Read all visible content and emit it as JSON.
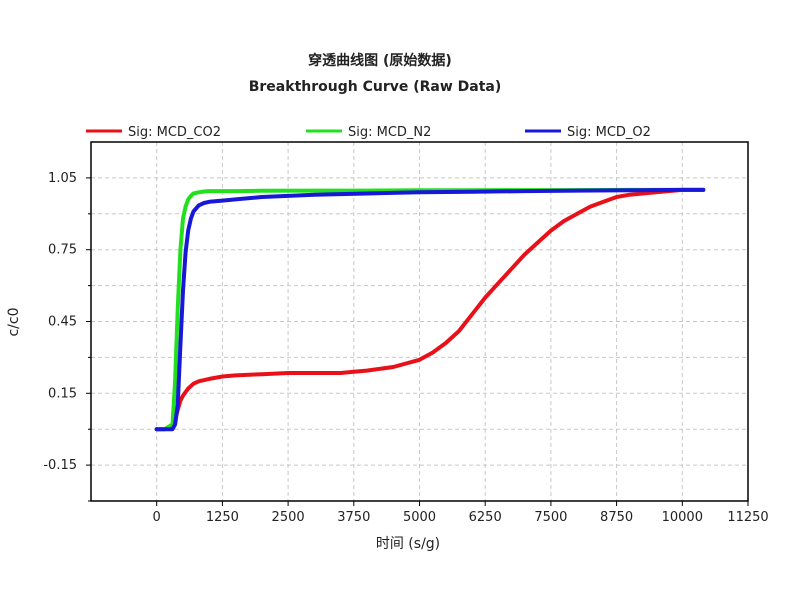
{
  "chart_data": {
    "type": "line",
    "title": "穿透曲线图 (原始数据)",
    "subtitle": "Breakthrough Curve (Raw Data)",
    "xlabel": "时间 (s/g)",
    "ylabel": "c/c0",
    "xlim": [
      -1250,
      11250
    ],
    "ylim": [
      -0.3,
      1.2
    ],
    "xticks": [
      0,
      1250,
      2500,
      3750,
      5000,
      6250,
      7500,
      8750,
      10000,
      11250
    ],
    "yticks": [
      -0.15,
      0.15,
      0.45,
      0.75,
      1.05
    ],
    "yticks_minor": [
      -0.3,
      0,
      0.3,
      0.6,
      0.9
    ],
    "ytick_labels": [
      "-0.15",
      "0.15",
      "0.45",
      "0.75",
      "1.05"
    ],
    "grid": true,
    "legend_position": "top",
    "series": [
      {
        "name": "Sig: MCD_CO2",
        "color": "#e8111a",
        "x": [
          0,
          150,
          300,
          350,
          400,
          450,
          500,
          600,
          700,
          800,
          1000,
          1250,
          1500,
          2000,
          2500,
          3000,
          3500,
          3750,
          4000,
          4500,
          5000,
          5250,
          5500,
          5750,
          6000,
          6250,
          6500,
          6750,
          7000,
          7250,
          7500,
          7750,
          8000,
          8250,
          8500,
          8750,
          9000,
          9500,
          10000,
          10400
        ],
        "y": [
          0.0,
          0.0,
          0.01,
          0.04,
          0.08,
          0.12,
          0.14,
          0.17,
          0.19,
          0.2,
          0.21,
          0.22,
          0.225,
          0.23,
          0.235,
          0.235,
          0.235,
          0.24,
          0.245,
          0.26,
          0.29,
          0.32,
          0.36,
          0.41,
          0.48,
          0.55,
          0.61,
          0.67,
          0.73,
          0.78,
          0.83,
          0.87,
          0.9,
          0.93,
          0.95,
          0.97,
          0.98,
          0.99,
          1.0,
          1.0
        ]
      },
      {
        "name": "Sig: MCD_N2",
        "color": "#22e01e",
        "x": [
          0,
          150,
          300,
          350,
          400,
          450,
          500,
          550,
          600,
          650,
          700,
          800,
          900,
          1000,
          1250,
          1500,
          2000,
          3000,
          4000,
          5000,
          6000,
          7000,
          8000,
          9000,
          10000,
          10400
        ],
        "y": [
          0.0,
          0.0,
          0.02,
          0.2,
          0.5,
          0.75,
          0.88,
          0.93,
          0.96,
          0.975,
          0.985,
          0.99,
          0.993,
          0.995,
          0.995,
          0.995,
          0.996,
          0.997,
          0.997,
          0.998,
          0.998,
          0.999,
          0.999,
          1.0,
          1.0,
          1.0
        ]
      },
      {
        "name": "Sig: MCD_O2",
        "color": "#1818d8",
        "x": [
          0,
          150,
          300,
          350,
          400,
          450,
          500,
          550,
          600,
          650,
          700,
          800,
          900,
          1000,
          1250,
          1500,
          2000,
          3000,
          4000,
          5000,
          6000,
          7000,
          8000,
          9000,
          10000,
          10400
        ],
        "y": [
          0.0,
          0.0,
          0.0,
          0.02,
          0.1,
          0.35,
          0.58,
          0.74,
          0.83,
          0.88,
          0.91,
          0.935,
          0.945,
          0.95,
          0.955,
          0.96,
          0.97,
          0.98,
          0.985,
          0.99,
          0.992,
          0.995,
          0.997,
          0.998,
          1.0,
          1.0
        ]
      }
    ]
  }
}
